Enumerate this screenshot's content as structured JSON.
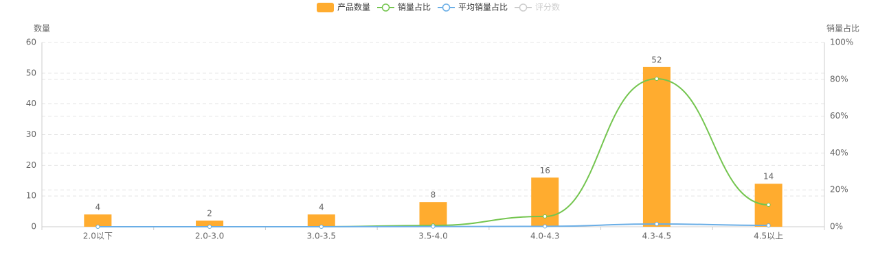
{
  "chart_data": {
    "type": "bar-line",
    "y_label": "数量",
    "y2_label": "销量占比",
    "categories": [
      "2.0以下",
      "2.0-3.0",
      "3.0-3.5",
      "3.5-4.0",
      "4.0-4.3",
      "4.3-4.5",
      "4.5以上"
    ],
    "series": [
      {
        "name": "产品数量",
        "type": "bar",
        "color": "#ffac2f",
        "values": [
          4,
          2,
          4,
          8,
          16,
          52,
          14
        ]
      },
      {
        "name": "销量占比",
        "type": "line",
        "axis": "y2",
        "color": "#74c54f",
        "values": [
          0,
          0,
          0,
          0.7,
          5.6,
          80.3,
          11.9
        ]
      },
      {
        "name": "平均销量占比",
        "type": "line",
        "axis": "y2",
        "color": "#6aaee6",
        "values": [
          0,
          0,
          0,
          0.1,
          0.2,
          1.5,
          0.7
        ]
      },
      {
        "name": "评分数",
        "type": "line",
        "color": "#cccccc",
        "hidden": true
      }
    ],
    "ylim": [
      0,
      60
    ],
    "yticks": [
      0,
      10,
      20,
      30,
      40,
      50,
      60
    ],
    "y2lim": [
      0,
      100
    ],
    "y2ticks": [
      {
        "value": 0,
        "label": "0%"
      },
      {
        "value": 20,
        "label": "20%"
      },
      {
        "value": 40,
        "label": "40%"
      },
      {
        "value": 60,
        "label": "60%"
      },
      {
        "value": 80,
        "label": "80%"
      },
      {
        "value": 100,
        "label": "100%"
      }
    ],
    "grid": true
  }
}
